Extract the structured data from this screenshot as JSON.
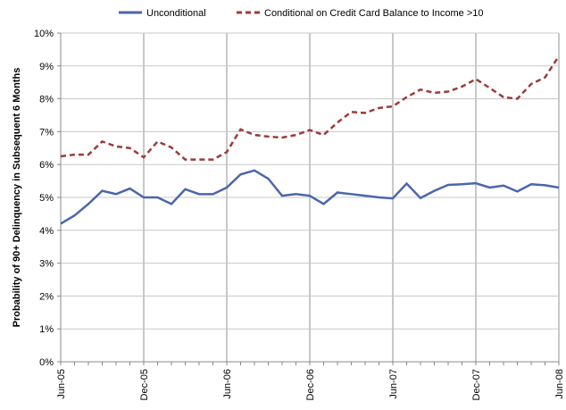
{
  "chart_data": {
    "type": "line",
    "y_label": "Probability of 90+ Delinquency in Subsequent 6 Months",
    "categories": [
      "Jun-05",
      null,
      null,
      null,
      null,
      null,
      "Dec-05",
      null,
      null,
      null,
      null,
      null,
      "Jun-06",
      null,
      null,
      null,
      null,
      null,
      "Dec-06",
      null,
      null,
      null,
      null,
      null,
      "Jun-07",
      null,
      null,
      null,
      null,
      null,
      "Dec-07",
      null,
      null,
      null,
      null,
      null,
      "Jun-08"
    ],
    "series": [
      {
        "name": "Unconditional",
        "color": "#4a66ac",
        "dash": false,
        "values": [
          4.2,
          4.45,
          4.8,
          5.2,
          5.1,
          5.27,
          5.0,
          5.0,
          4.8,
          5.25,
          5.1,
          5.1,
          5.3,
          5.7,
          5.82,
          5.57,
          5.05,
          5.1,
          5.05,
          4.8,
          5.15,
          5.1,
          5.05,
          5.0,
          4.97,
          5.42,
          4.98,
          5.2,
          5.38,
          5.4,
          5.43,
          5.3,
          5.36,
          5.18,
          5.4,
          5.37,
          5.3
        ]
      },
      {
        "name": "Conditional on Credit Card Balance to Income >10",
        "color": "#9b3b3b",
        "dash": true,
        "values": [
          6.25,
          6.3,
          6.3,
          6.7,
          6.55,
          6.5,
          6.22,
          6.7,
          6.52,
          6.15,
          6.15,
          6.15,
          6.38,
          7.07,
          6.9,
          6.85,
          6.82,
          6.9,
          7.05,
          6.9,
          7.28,
          7.6,
          7.57,
          7.72,
          7.77,
          8.05,
          8.28,
          8.18,
          8.22,
          8.37,
          8.6,
          8.33,
          8.05,
          8.0,
          8.45,
          8.65,
          9.3
        ]
      }
    ],
    "ylim": [
      0,
      10
    ],
    "yticks": [
      {
        "value": 0,
        "label": "0%"
      },
      {
        "value": 1,
        "label": "1%"
      },
      {
        "value": 2,
        "label": "2%"
      },
      {
        "value": 3,
        "label": "3%"
      },
      {
        "value": 4,
        "label": "4%"
      },
      {
        "value": 5,
        "label": "5%"
      },
      {
        "value": 6,
        "label": "6%"
      },
      {
        "value": 7,
        "label": "7%"
      },
      {
        "value": 8,
        "label": "8%"
      },
      {
        "value": 9,
        "label": "9%"
      },
      {
        "value": 10,
        "label": "10%"
      }
    ],
    "grid": true
  }
}
